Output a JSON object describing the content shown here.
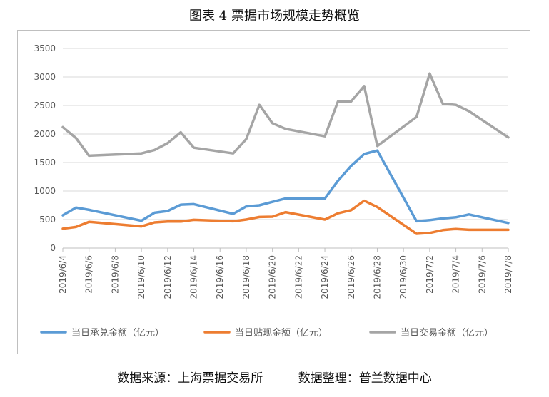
{
  "title": "图表 4  票据市场规模走势概览",
  "footer": {
    "source": "数据来源：上海票据交易所",
    "compiled": "数据整理：普兰数据中心"
  },
  "chart_data": {
    "type": "line",
    "ylim": [
      0,
      3500
    ],
    "yticks": [
      0,
      500,
      1000,
      1500,
      2000,
      2500,
      3000,
      3500
    ],
    "grid": true,
    "legend_position": "bottom",
    "x_range": [
      "2019/6/4",
      "2019/7/8"
    ],
    "xticks": [
      "2019/6/4",
      "2019/6/6",
      "2019/6/8",
      "2019/6/10",
      "2019/6/12",
      "2019/6/14",
      "2019/6/16",
      "2019/6/18",
      "2019/6/20",
      "2019/6/22",
      "2019/6/24",
      "2019/6/26",
      "2019/6/28",
      "2019/6/30",
      "2019/7/2",
      "2019/7/4",
      "2019/7/6",
      "2019/7/8"
    ],
    "series": [
      {
        "name": "当日承兑金额（亿元）",
        "color": "#5b9bd5",
        "points": [
          [
            "2019/6/4",
            575
          ],
          [
            "2019/6/5",
            710
          ],
          [
            "2019/6/6",
            670
          ],
          [
            "2019/6/10",
            480
          ],
          [
            "2019/6/11",
            620
          ],
          [
            "2019/6/12",
            650
          ],
          [
            "2019/6/13",
            760
          ],
          [
            "2019/6/14",
            770
          ],
          [
            "2019/6/17",
            600
          ],
          [
            "2019/6/18",
            730
          ],
          [
            "2019/6/19",
            750
          ],
          [
            "2019/6/20",
            810
          ],
          [
            "2019/6/21",
            870
          ],
          [
            "2019/6/24",
            870
          ],
          [
            "2019/6/25",
            1180
          ],
          [
            "2019/6/26",
            1440
          ],
          [
            "2019/6/27",
            1650
          ],
          [
            "2019/6/28",
            1710
          ],
          [
            "2019/7/1",
            470
          ],
          [
            "2019/7/2",
            490
          ],
          [
            "2019/7/3",
            520
          ],
          [
            "2019/7/4",
            540
          ],
          [
            "2019/7/5",
            590
          ],
          [
            "2019/7/8",
            440
          ]
        ]
      },
      {
        "name": "当日贴现金额（亿元）",
        "color": "#ed7d31",
        "points": [
          [
            "2019/6/4",
            340
          ],
          [
            "2019/6/5",
            370
          ],
          [
            "2019/6/6",
            460
          ],
          [
            "2019/6/10",
            380
          ],
          [
            "2019/6/11",
            450
          ],
          [
            "2019/6/12",
            465
          ],
          [
            "2019/6/13",
            465
          ],
          [
            "2019/6/14",
            495
          ],
          [
            "2019/6/17",
            470
          ],
          [
            "2019/6/18",
            500
          ],
          [
            "2019/6/19",
            545
          ],
          [
            "2019/6/20",
            550
          ],
          [
            "2019/6/21",
            630
          ],
          [
            "2019/6/24",
            500
          ],
          [
            "2019/6/25",
            610
          ],
          [
            "2019/6/26",
            665
          ],
          [
            "2019/6/27",
            830
          ],
          [
            "2019/6/28",
            720
          ],
          [
            "2019/7/1",
            250
          ],
          [
            "2019/7/2",
            265
          ],
          [
            "2019/7/3",
            315
          ],
          [
            "2019/7/4",
            335
          ],
          [
            "2019/7/5",
            320
          ],
          [
            "2019/7/8",
            320
          ]
        ]
      },
      {
        "name": "当日交易金额（亿元）",
        "color": "#a5a5a5",
        "points": [
          [
            "2019/6/4",
            2120
          ],
          [
            "2019/6/5",
            1930
          ],
          [
            "2019/6/6",
            1620
          ],
          [
            "2019/6/10",
            1660
          ],
          [
            "2019/6/11",
            1720
          ],
          [
            "2019/6/12",
            1840
          ],
          [
            "2019/6/13",
            2030
          ],
          [
            "2019/6/14",
            1760
          ],
          [
            "2019/6/17",
            1660
          ],
          [
            "2019/6/18",
            1910
          ],
          [
            "2019/6/19",
            2510
          ],
          [
            "2019/6/20",
            2190
          ],
          [
            "2019/6/21",
            2090
          ],
          [
            "2019/6/24",
            1960
          ],
          [
            "2019/6/25",
            2570
          ],
          [
            "2019/6/26",
            2570
          ],
          [
            "2019/6/27",
            2840
          ],
          [
            "2019/6/28",
            1790
          ],
          [
            "2019/7/1",
            2300
          ],
          [
            "2019/7/2",
            3060
          ],
          [
            "2019/7/3",
            2530
          ],
          [
            "2019/7/4",
            2510
          ],
          [
            "2019/7/5",
            2400
          ],
          [
            "2019/7/8",
            1940
          ]
        ]
      }
    ]
  }
}
